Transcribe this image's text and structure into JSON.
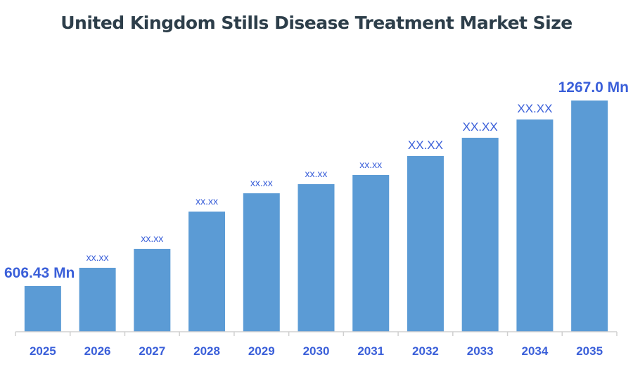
{
  "chart_data": {
    "type": "bar",
    "title": "United Kingdom Stills Disease Treatment Market Size",
    "xlabel": "",
    "ylabel": "",
    "categories": [
      "2025",
      "2026",
      "2027",
      "2028",
      "2029",
      "2030",
      "2031",
      "2032",
      "2033",
      "2034",
      "2035"
    ],
    "values": [
      606.43,
      671.5,
      739.0,
      871.6,
      936.7,
      969.2,
      1001.8,
      1069.3,
      1134.4,
      1199.4,
      1267.0
    ],
    "data_labels": [
      "606.43 Mn",
      "xx.xx",
      "xx.xx",
      "xx.xx",
      "xx.xx",
      "xx.xx",
      "xx.xx",
      "XX.XX",
      "XX.XX",
      "XX.XX",
      "1267.0 Mn"
    ],
    "grid": false,
    "legend": "none",
    "colors": {
      "bar": "#5b9bd5",
      "label": "#3a5fd9",
      "axis": "#d0d0d0",
      "title": "#2d3e4a"
    }
  }
}
